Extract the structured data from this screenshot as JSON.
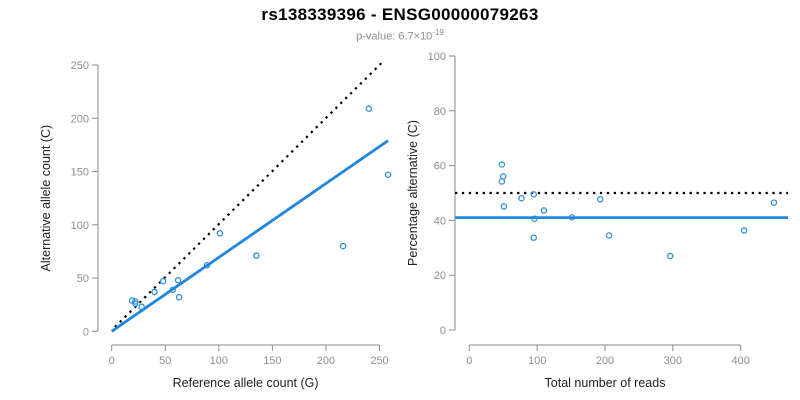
{
  "header": {
    "title": "rs138339396 - ENSG00000079263",
    "subtitle_prefix": "p-value: ",
    "p_value_base": "6.7×10",
    "p_value_exponent": "-19"
  },
  "colors": {
    "accent_blue": "#2186DE",
    "point_blue": "#2F8FDB",
    "dotted_black": "#000000",
    "axis_gray": "#8a8a8a",
    "tick_text_gray": "#8e8e8e",
    "axis_title_black": "#1f1f1f",
    "title_black": "#000000",
    "subtitle_gray": "#8c8c8c"
  },
  "chart_data": [
    {
      "type": "scatter",
      "name": "allele-count-scatter",
      "xlabel": "Reference allele count (G)",
      "ylabel": "Alternative allele count (C)",
      "xlim": [
        0,
        260
      ],
      "ylim": [
        0,
        260
      ],
      "xticks": [
        0,
        50,
        100,
        150,
        200,
        250
      ],
      "yticks": [
        0,
        50,
        100,
        150,
        200,
        250
      ],
      "grid": false,
      "legend": null,
      "points": [
        [
          19,
          29
        ],
        [
          22,
          28
        ],
        [
          22,
          26
        ],
        [
          28,
          23
        ],
        [
          40,
          37
        ],
        [
          48,
          47
        ],
        [
          57,
          39
        ],
        [
          62,
          48
        ],
        [
          63,
          32
        ],
        [
          89,
          62
        ],
        [
          101,
          92
        ],
        [
          135,
          71
        ],
        [
          216,
          80
        ],
        [
          240,
          209
        ],
        [
          258,
          147
        ]
      ],
      "lines": [
        {
          "name": "identity-line",
          "style": "dotted",
          "color": "#000000",
          "from": [
            3,
            4
          ],
          "to": [
            254,
            254
          ]
        },
        {
          "name": "regression-line",
          "style": "solid",
          "color": "#2186DE",
          "from": [
            0,
            0
          ],
          "to": [
            258,
            179
          ]
        }
      ]
    },
    {
      "type": "scatter",
      "name": "percentage-alternative-scatter",
      "xlabel": "Total number of reads",
      "ylabel": "Percentage alternative (C)",
      "xlim": [
        0,
        460
      ],
      "ylim": [
        0,
        100
      ],
      "xticks": [
        0,
        100,
        200,
        300,
        400
      ],
      "yticks": [
        0,
        20,
        40,
        60,
        80,
        100
      ],
      "grid": false,
      "legend": null,
      "points": [
        [
          48,
          60.4
        ],
        [
          50,
          56.0
        ],
        [
          48,
          54.2
        ],
        [
          51,
          45.1
        ],
        [
          77,
          48.1
        ],
        [
          95,
          49.5
        ],
        [
          96,
          40.6
        ],
        [
          110,
          43.6
        ],
        [
          95,
          33.7
        ],
        [
          151,
          41.1
        ],
        [
          193,
          47.7
        ],
        [
          206,
          34.5
        ],
        [
          296,
          27.0
        ],
        [
          405,
          36.3
        ],
        [
          449,
          46.5
        ]
      ],
      "lines": [
        {
          "name": "expected-50pct-line",
          "style": "dotted",
          "color": "#000000",
          "hline": 50
        },
        {
          "name": "fitted-percentage-line",
          "style": "solid",
          "color": "#2186DE",
          "hline": 41
        }
      ]
    }
  ]
}
